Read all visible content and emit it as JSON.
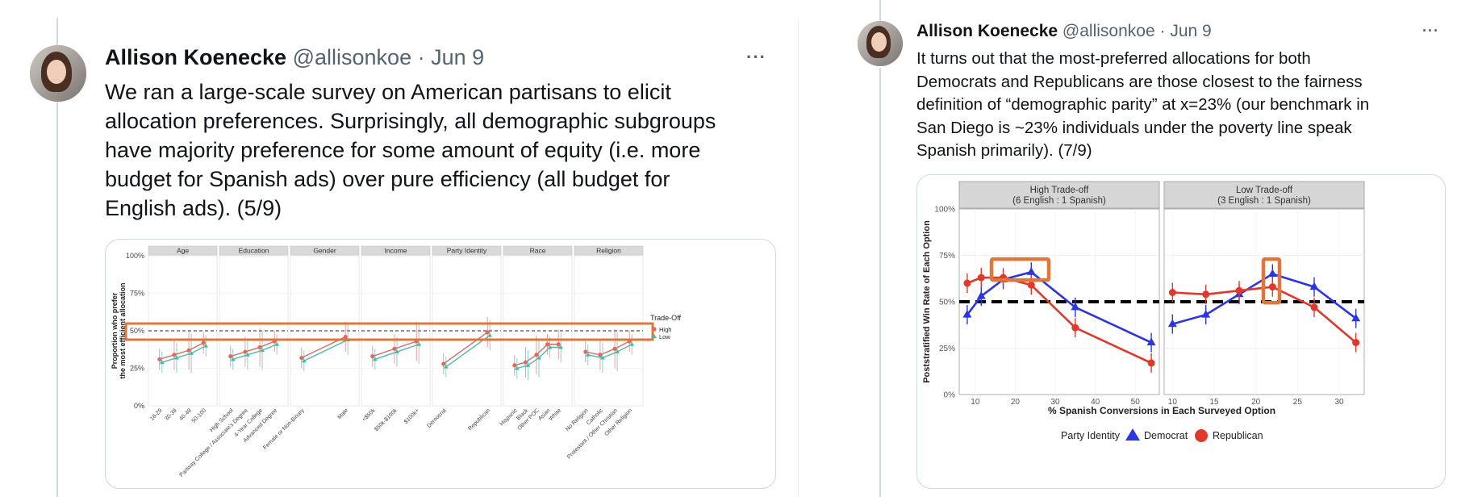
{
  "tweets": [
    {
      "author_name": "Allison Koenecke",
      "handle": "@allisonkoe",
      "separator": "·",
      "date": "Jun 9",
      "more_label": "···",
      "text": "We ran a large-scale survey on American partisans to elicit allocation preferences. Surprisingly, all demographic subgroups have majority preference for some amount of equity (i.e. more budget for Spanish ads) over pure efficiency (all budget for English ads). (5/9)",
      "lines": [
        "We ran a large-scale survey on American partisans to elicit",
        "allocation preferences. Surprisingly, all demographic subgroups",
        "have majority preference for some amount of equity (i.e. more",
        "budget for Spanish ads) over pure efficiency (all budget for",
        "English ads). (5/9)"
      ]
    },
    {
      "author_name": "Allison Koenecke",
      "handle": "@allisonkoe",
      "separator": "·",
      "date": "Jun 9",
      "more_label": "···",
      "text": "It turns out that the most-preferred allocations for both Democrats and Republicans are those closest to the fairness definition of “demographic parity” at x=23% (our benchmark in San Diego is ~23% individuals under the poverty line speak Spanish primarily). (7/9)",
      "lines": [
        "It turns out that the most-preferred allocations for both",
        "Democrats and Republicans are those closest to the fairness",
        "definition of “demographic parity” at x=23% (our benchmark in",
        "San Diego is ~23% individuals under the poverty line speak",
        "Spanish primarily). (7/9)"
      ]
    }
  ],
  "chart_data": [
    {
      "type": "scatter",
      "ylabel": "Proportion who prefer the most efficient allocation",
      "ylabel_lines": [
        "Proportion who prefer",
        "the most efficient allocation"
      ],
      "ylim": [
        0,
        1
      ],
      "yticks": [
        "0%",
        "25%",
        "50%",
        "75%",
        "100%"
      ],
      "legend_title": "Trade-Off",
      "legend_placement": "right",
      "series_names": [
        "High",
        "Low"
      ],
      "colors": {
        "High": "#e06a5e",
        "Low": "#4dbab0",
        "highlight": "#e0773a"
      },
      "panels": [
        {
          "name": "Age",
          "categories": [
            "18-29",
            "30-39",
            "40-49",
            "50-100"
          ],
          "High": [
            0.31,
            0.34,
            0.37,
            0.42
          ],
          "Low": [
            0.29,
            0.32,
            0.35,
            0.4
          ]
        },
        {
          "name": "Education",
          "categories": [
            "High School",
            "Partway College / Associate's Degree",
            "4-Year College",
            "Advanced Degree"
          ],
          "High": [
            0.33,
            0.36,
            0.39,
            0.43
          ],
          "Low": [
            0.31,
            0.34,
            0.37,
            0.41
          ]
        },
        {
          "name": "Gender",
          "categories": [
            "Female or Non-Binary",
            "Male"
          ],
          "High": [
            0.32,
            0.46
          ],
          "Low": [
            0.3,
            0.44
          ]
        },
        {
          "name": "Income",
          "categories": [
            "<$50k",
            "$50k-$100k",
            "$100k+"
          ],
          "High": [
            0.33,
            0.38,
            0.43
          ],
          "Low": [
            0.31,
            0.36,
            0.41
          ]
        },
        {
          "name": "Party Identity",
          "categories": [
            "Democrat",
            "Republican"
          ],
          "High": [
            0.28,
            0.49
          ],
          "Low": [
            0.26,
            0.47
          ]
        },
        {
          "name": "Race",
          "categories": [
            "Hispanic",
            "Black",
            "Other POC",
            "Asian",
            "White"
          ],
          "High": [
            0.27,
            0.29,
            0.34,
            0.41,
            0.41
          ],
          "Low": [
            0.25,
            0.27,
            0.32,
            0.39,
            0.39
          ]
        },
        {
          "name": "Religion",
          "categories": [
            "No Religion",
            "Catholic",
            "Protestant / Other Christian",
            "Other Religion"
          ],
          "High": [
            0.36,
            0.34,
            0.38,
            0.43
          ],
          "Low": [
            0.34,
            0.32,
            0.36,
            0.41
          ]
        }
      ]
    },
    {
      "type": "line",
      "xlabel": "% Spanish Conversions in Each Surveyed Option",
      "ylabel": "Poststratified Win Rate of Each Option",
      "ylim": [
        0,
        1
      ],
      "yticks": [
        "0%",
        "25%",
        "50%",
        "75%",
        "100%"
      ],
      "legend_title": "Party Identity",
      "legend_placement": "bottom",
      "colors": {
        "Democrat": "#2b35e0",
        "Republican": "#e0392b",
        "highlight": "#e0773a"
      },
      "panels": [
        {
          "title_lines": [
            "High Trade-off",
            "(6 English : 1 Spanish)"
          ],
          "xlim": [
            6,
            56
          ],
          "xticks": [
            10,
            20,
            30,
            40,
            50
          ],
          "series": [
            {
              "name": "Democrat",
              "x": [
                8,
                11.5,
                17,
                24,
                35,
                54
              ],
              "y": [
                0.43,
                0.53,
                0.62,
                0.66,
                0.47,
                0.28
              ]
            },
            {
              "name": "Republican",
              "x": [
                8,
                11.5,
                17,
                24,
                35,
                54
              ],
              "y": [
                0.6,
                0.63,
                0.63,
                0.59,
                0.36,
                0.17
              ]
            }
          ]
        },
        {
          "title_lines": [
            "Low Trade-off",
            "(3 English : 1 Spanish)"
          ],
          "xlim": [
            9,
            33
          ],
          "xticks": [
            10,
            15,
            20,
            25,
            30
          ],
          "series": [
            {
              "name": "Democrat",
              "x": [
                10,
                14,
                18,
                22,
                27,
                32
              ],
              "y": [
                0.38,
                0.43,
                0.54,
                0.65,
                0.58,
                0.41
              ]
            },
            {
              "name": "Republican",
              "x": [
                10,
                14,
                18,
                22,
                27,
                32
              ],
              "y": [
                0.55,
                0.54,
                0.56,
                0.58,
                0.47,
                0.28
              ]
            }
          ]
        }
      ]
    }
  ]
}
